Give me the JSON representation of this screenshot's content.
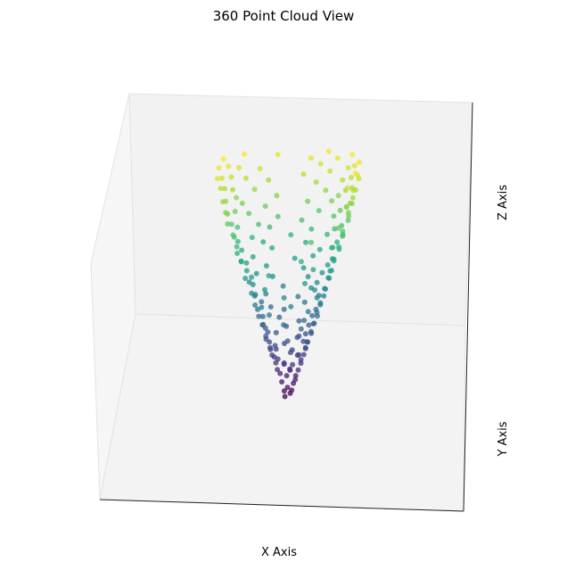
{
  "chart_data": {
    "type": "scatter",
    "projection": "3d",
    "title": "360 Point Cloud View",
    "xlabel": "X Axis",
    "ylabel": "Y Axis",
    "zlabel": "Z Axis",
    "grid": false,
    "colormap": "viridis",
    "color_by": "z",
    "colormap_colors": [
      "#440154",
      "#472d7b",
      "#3b528b",
      "#2c728e",
      "#21918c",
      "#28ae80",
      "#5ec962",
      "#addc30",
      "#fde725"
    ],
    "marker_alpha": 0.75,
    "pane_color": "#f2f2f2",
    "shape": "cone-like funnel, narrow at bottom, flared at top",
    "points": [
      [
        -0.03,
        0.0,
        0.05
      ],
      [
        0.02,
        0.01,
        0.08
      ],
      [
        0.04,
        -0.02,
        0.12
      ],
      [
        -0.04,
        0.03,
        0.1
      ],
      [
        0.0,
        -0.03,
        0.15
      ],
      [
        0.05,
        0.02,
        0.18
      ],
      [
        -0.06,
        0.0,
        0.2
      ],
      [
        0.07,
        0.01,
        0.22
      ],
      [
        -0.02,
        0.05,
        0.25
      ],
      [
        0.08,
        -0.03,
        0.27
      ],
      [
        -0.08,
        0.02,
        0.28
      ],
      [
        0.01,
        0.07,
        0.3
      ],
      [
        0.1,
        0.0,
        0.32
      ],
      [
        -0.1,
        -0.02,
        0.33
      ],
      [
        0.03,
        -0.08,
        0.35
      ],
      [
        -0.05,
        0.08,
        0.36
      ],
      [
        0.12,
        0.04,
        0.38
      ],
      [
        -0.12,
        0.01,
        0.39
      ],
      [
        0.06,
        -0.1,
        0.4
      ],
      [
        -0.02,
        -0.11,
        0.42
      ],
      [
        0.13,
        -0.02,
        0.43
      ],
      [
        -0.14,
        0.05,
        0.44
      ],
      [
        0.09,
        0.1,
        0.45
      ],
      [
        -0.08,
        -0.11,
        0.46
      ],
      [
        0.15,
        0.03,
        0.47
      ],
      [
        -0.15,
        -0.03,
        0.48
      ],
      [
        0.02,
        0.14,
        0.49
      ],
      [
        0.11,
        -0.11,
        0.5
      ],
      [
        -0.13,
        0.09,
        0.51
      ],
      [
        0.16,
        0.07,
        0.52
      ],
      [
        -0.17,
        0.0,
        0.53
      ],
      [
        0.05,
        -0.16,
        0.54
      ],
      [
        -0.06,
        0.16,
        0.55
      ],
      [
        0.18,
        -0.05,
        0.56
      ],
      [
        -0.16,
        -0.09,
        0.57
      ],
      [
        0.13,
        0.13,
        0.58
      ],
      [
        -0.19,
        0.06,
        0.59
      ],
      [
        0.19,
        0.02,
        0.6
      ],
      [
        -0.1,
        -0.16,
        0.61
      ],
      [
        0.08,
        0.18,
        0.62
      ],
      [
        0.2,
        -0.09,
        0.63
      ],
      [
        -0.21,
        -0.02,
        0.64
      ],
      [
        0.15,
        0.15,
        0.65
      ],
      [
        -0.14,
        0.16,
        0.66
      ],
      [
        0.03,
        -0.21,
        0.67
      ],
      [
        0.22,
        0.05,
        0.68
      ],
      [
        -0.2,
        -0.1,
        0.69
      ],
      [
        0.12,
        -0.19,
        0.7
      ],
      [
        -0.05,
        0.22,
        0.71
      ],
      [
        0.23,
        -0.03,
        0.72
      ],
      [
        -0.23,
        0.07,
        0.73
      ],
      [
        0.18,
        0.15,
        0.74
      ],
      [
        -0.17,
        -0.17,
        0.75
      ],
      [
        0.07,
        0.24,
        0.76
      ],
      [
        0.24,
        0.1,
        0.77
      ],
      [
        -0.25,
        0.0,
        0.78
      ],
      [
        0.16,
        -0.2,
        0.79
      ],
      [
        -0.12,
        0.23,
        0.8
      ],
      [
        0.26,
        -0.07,
        0.81
      ],
      [
        -0.22,
        -0.14,
        0.82
      ],
      [
        0.21,
        0.17,
        0.83
      ],
      [
        -0.26,
        0.1,
        0.84
      ],
      [
        0.0,
        -0.27,
        0.85
      ],
      [
        0.28,
        0.04,
        0.86
      ],
      [
        -0.08,
        0.27,
        0.87
      ],
      [
        0.19,
        -0.21,
        0.88
      ],
      [
        -0.27,
        -0.09,
        0.89
      ],
      [
        0.25,
        0.15,
        0.9
      ],
      [
        -0.2,
        0.21,
        0.91
      ],
      [
        0.29,
        -0.05,
        0.92
      ],
      [
        -0.3,
        0.03,
        0.93
      ],
      [
        0.12,
        0.28,
        0.94
      ],
      [
        -0.14,
        -0.27,
        0.95
      ],
      [
        0.3,
        0.1,
        0.96
      ],
      [
        0.23,
        -0.21,
        0.97
      ],
      [
        -0.28,
        0.14,
        0.98
      ],
      [
        0.05,
        0.31,
        0.99
      ],
      [
        -0.31,
        -0.07,
        1.0
      ],
      [
        0.32,
        -0.02,
        1.01
      ],
      [
        -0.22,
        -0.24,
        1.02
      ],
      [
        0.27,
        0.2,
        1.03
      ],
      [
        -0.25,
        0.22,
        1.04
      ],
      [
        0.08,
        -0.33,
        1.05
      ],
      [
        0.34,
        0.06,
        1.06
      ],
      [
        -0.33,
        0.08,
        1.07
      ],
      [
        0.18,
        0.3,
        1.08
      ],
      [
        -0.1,
        0.34,
        1.09
      ],
      [
        0.31,
        -0.17,
        1.1
      ],
      [
        -0.35,
        -0.03,
        1.11
      ],
      [
        0.35,
        0.1,
        1.12
      ],
      [
        -0.29,
        -0.22,
        1.13
      ],
      [
        0.24,
        0.28,
        1.14
      ],
      [
        0.02,
        -0.37,
        1.15
      ],
      [
        -0.36,
        0.12,
        1.16
      ],
      [
        0.37,
        -0.08,
        1.17
      ],
      [
        0.14,
        0.36,
        1.18
      ],
      [
        -0.2,
        0.33,
        1.19
      ],
      [
        0.3,
        -0.25,
        1.2
      ],
      [
        -0.38,
        0.02,
        1.21
      ],
      [
        0.38,
        0.14,
        1.22
      ],
      [
        -0.17,
        -0.36,
        1.23
      ],
      [
        0.29,
        0.28,
        1.24
      ],
      [
        -0.34,
        0.21,
        1.25
      ],
      [
        0.09,
        0.4,
        1.26
      ],
      [
        0.4,
        -0.04,
        1.27
      ],
      [
        -0.4,
        -0.1,
        1.28
      ],
      [
        0.22,
        -0.35,
        1.29
      ],
      [
        -0.26,
        0.32,
        1.3
      ],
      [
        0.41,
        0.1,
        1.31
      ],
      [
        -0.41,
        0.05,
        1.32
      ],
      [
        0.35,
        0.24,
        1.33
      ],
      [
        -0.31,
        -0.29,
        1.34
      ],
      [
        0.0,
        0.43,
        1.35
      ],
      [
        0.43,
        -0.12,
        1.36
      ],
      [
        -0.43,
        0.16,
        1.37
      ],
      [
        0.18,
        0.41,
        1.38
      ],
      [
        -0.12,
        -0.43,
        1.39
      ],
      [
        0.4,
        0.21,
        1.4
      ],
      [
        -0.38,
        0.25,
        1.41
      ],
      [
        0.44,
        0.05,
        1.42
      ],
      [
        0.3,
        -0.34,
        1.43
      ],
      [
        -0.45,
        -0.04,
        1.44
      ],
      [
        0.25,
        0.39,
        1.45
      ],
      [
        -0.22,
        0.41,
        1.46
      ],
      [
        0.46,
        -0.08,
        1.47
      ],
      [
        -0.42,
        -0.22,
        1.48
      ],
      [
        0.38,
        0.3,
        1.49
      ],
      [
        0.1,
        0.47,
        1.5
      ],
      [
        -0.47,
        0.12,
        1.51
      ],
      [
        0.48,
        0.12,
        1.52
      ],
      [
        -0.3,
        0.38,
        1.53
      ],
      [
        0.2,
        -0.45,
        1.54
      ],
      [
        -0.47,
        -0.16,
        1.55
      ],
      [
        0.44,
        0.25,
        1.56
      ],
      [
        -0.05,
        0.5,
        1.57
      ],
      [
        0.5,
        -0.02,
        1.58
      ],
      [
        -0.4,
        0.32,
        1.59
      ],
      [
        0.32,
        0.4,
        1.6
      ],
      [
        -0.5,
        0.08,
        1.61
      ],
      [
        0.47,
        -0.2,
        1.62
      ],
      [
        0.15,
        0.5,
        1.63
      ],
      [
        -0.46,
        -0.25,
        1.64
      ],
      [
        0.51,
        0.14,
        1.65
      ],
      [
        -0.25,
        0.46,
        1.66
      ],
      [
        0.4,
        0.35,
        1.67
      ],
      [
        -0.52,
        -0.02,
        1.68
      ],
      [
        0.53,
        0.04,
        1.69
      ],
      [
        -0.35,
        0.41,
        1.7
      ],
      [
        0.05,
        0.54,
        1.71
      ],
      [
        0.48,
        0.28,
        1.72
      ],
      [
        -0.52,
        0.18,
        1.73
      ],
      [
        0.3,
        -0.47,
        1.74
      ],
      [
        -0.18,
        0.53,
        1.75
      ],
      [
        0.55,
        -0.1,
        1.76
      ],
      [
        -0.49,
        -0.29,
        1.77
      ],
      [
        0.38,
        0.43,
        1.78
      ],
      [
        -0.56,
        0.06,
        1.79
      ],
      [
        0.56,
        0.18,
        1.8
      ],
      [
        0.22,
        0.53,
        1.81
      ],
      [
        -0.44,
        0.38,
        1.82
      ],
      [
        0.53,
        -0.25,
        1.83
      ],
      [
        -0.57,
        -0.12,
        1.84
      ],
      [
        0.45,
        0.38,
        1.85
      ],
      [
        -0.3,
        0.51,
        1.86
      ],
      [
        0.58,
        0.08,
        1.87
      ],
      [
        -0.55,
        0.22,
        1.88
      ],
      [
        0.1,
        0.59,
        1.89
      ],
      [
        0.52,
        0.32,
        1.9
      ],
      [
        -0.59,
        0.0,
        1.91
      ],
      [
        0.35,
        0.49,
        1.92
      ],
      [
        -0.5,
        0.35,
        1.93
      ],
      [
        0.6,
        -0.06,
        1.94
      ],
      [
        -0.2,
        0.58,
        1.95
      ],
      [
        0.57,
        0.24,
        1.96
      ],
      [
        -0.58,
        -0.18,
        1.97
      ],
      [
        0.42,
        0.46,
        1.98
      ],
      [
        0.61,
        0.1,
        1.99
      ],
      [
        -0.55,
        0.3,
        2.0
      ],
      [
        0.28,
        0.56,
        2.01
      ],
      [
        -0.62,
        0.08,
        2.02
      ],
      [
        0.6,
        -0.18,
        2.03
      ],
      [
        -0.4,
        0.48,
        2.04
      ],
      [
        0.5,
        0.4,
        2.05
      ],
      [
        -0.62,
        -0.1,
        2.06
      ],
      [
        0.63,
        0.02,
        2.07
      ],
      [
        0.18,
        0.61,
        2.08
      ],
      [
        -0.58,
        0.26,
        2.09
      ],
      [
        0.58,
        0.3,
        2.1
      ],
      [
        -0.28,
        0.58,
        2.11
      ],
      [
        0.64,
        0.14,
        2.12
      ],
      [
        -0.64,
        0.15,
        2.13
      ],
      [
        0.46,
        0.46,
        2.14
      ],
      [
        0.05,
        0.65,
        2.15
      ],
      [
        -0.48,
        0.45,
        2.16
      ],
      [
        0.65,
        -0.08,
        2.17
      ],
      [
        -0.65,
        -0.04,
        2.18
      ],
      [
        0.56,
        0.36,
        2.19
      ],
      [
        0.32,
        0.58,
        2.2
      ],
      [
        -0.6,
        0.3,
        2.21
      ],
      [
        0.66,
        0.2,
        2.22
      ],
      [
        -0.36,
        0.56,
        2.23
      ],
      [
        0.62,
        -0.25,
        2.24
      ],
      [
        -0.66,
        0.1,
        2.25
      ],
      [
        0.22,
        0.64,
        2.26
      ],
      [
        0.52,
        0.44,
        2.27
      ],
      [
        -0.54,
        0.4,
        2.28
      ],
      [
        0.67,
        0.06,
        2.29
      ],
      [
        -0.67,
        -0.12,
        2.3
      ],
      [
        0.12,
        0.67,
        2.31
      ],
      [
        0.6,
        0.32,
        2.32
      ],
      [
        -0.62,
        0.26,
        2.33
      ],
      [
        0.4,
        0.55,
        2.34
      ],
      [
        -0.2,
        0.65,
        2.35
      ],
      [
        0.68,
        -0.14,
        2.36
      ],
      [
        -0.68,
        0.04,
        2.37
      ],
      [
        0.66,
        0.22,
        2.38
      ],
      [
        0.3,
        0.62,
        2.39
      ],
      [
        -0.5,
        0.47,
        2.4
      ],
      [
        0.56,
        0.42,
        2.41
      ],
      [
        -0.66,
        0.2,
        2.42
      ]
    ]
  }
}
